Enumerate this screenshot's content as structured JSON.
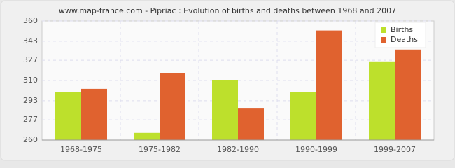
{
  "chart_data": {
    "type": "bar",
    "title": "www.map-france.com - Pipriac : Evolution of births and deaths between 1968 and 2007",
    "categories": [
      "1968-1975",
      "1975-1982",
      "1982-1990",
      "1990-1999",
      "1999-2007"
    ],
    "series": [
      {
        "name": "Births",
        "color": "#bde02c",
        "values": [
          300,
          266,
          310,
          300,
          326
        ]
      },
      {
        "name": "Deaths",
        "color": "#e0622f",
        "values": [
          303,
          316,
          287,
          352,
          336
        ]
      }
    ],
    "ylim": [
      260,
      360
    ],
    "yticks": [
      260,
      277,
      293,
      310,
      327,
      343,
      360
    ],
    "grid": true,
    "legend": "upper right"
  }
}
